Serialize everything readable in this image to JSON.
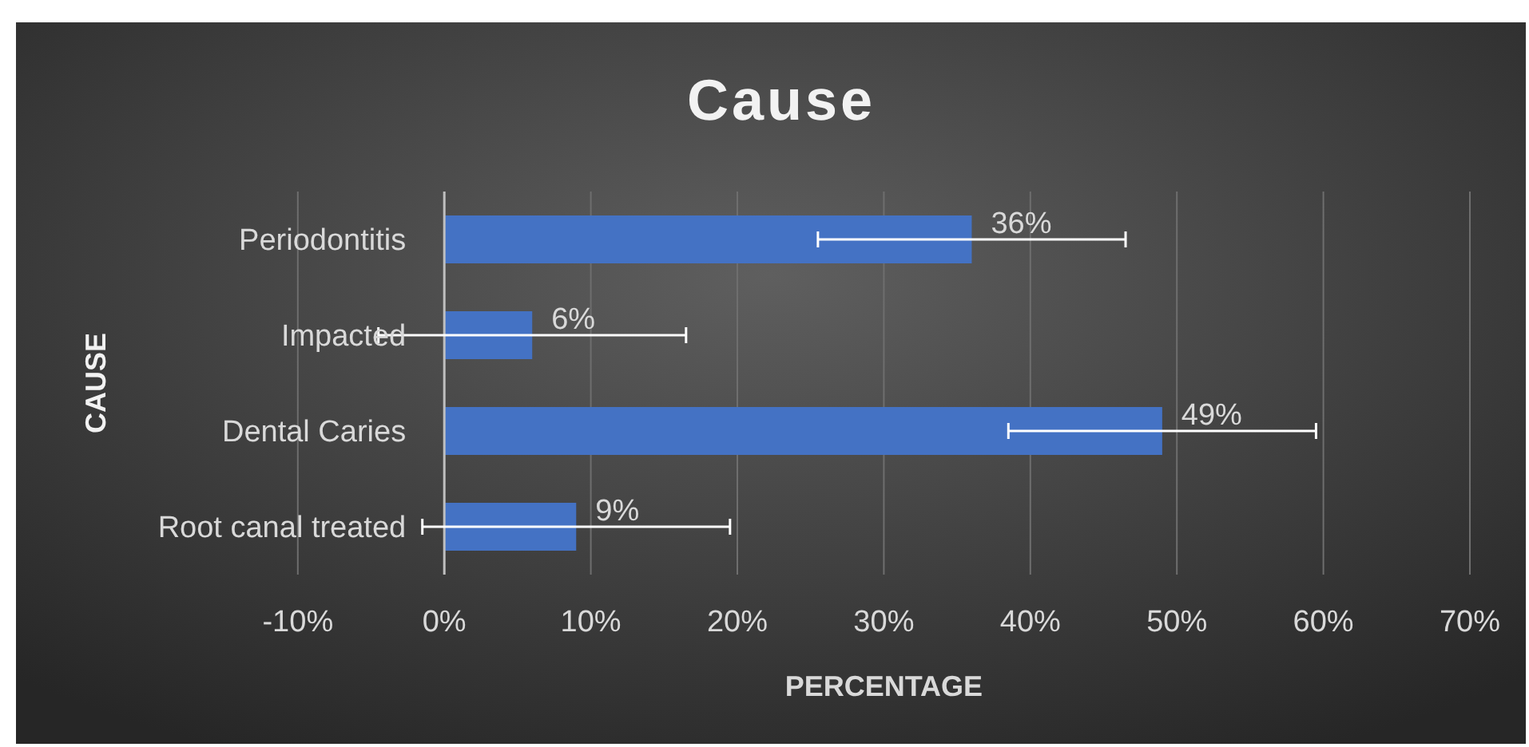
{
  "chart_data": {
    "type": "bar",
    "orientation": "horizontal",
    "title": "Cause",
    "xlabel": "PERCENTAGE",
    "ylabel": "CAUSE",
    "categories": [
      "Periodontitis",
      "Impacted",
      "Dental Caries",
      "Root canal treated"
    ],
    "values": [
      36,
      6,
      49,
      9
    ],
    "color": "#4472c4",
    "value_labels": [
      "36%",
      "6%",
      "49%",
      "9%"
    ],
    "errors": [
      10.5,
      10.5,
      10.5,
      10.5
    ],
    "xlim": [
      -10,
      70
    ],
    "xticks": [
      {
        "value": -10,
        "label": "-10%"
      },
      {
        "value": 0,
        "label": "0%"
      },
      {
        "value": 10,
        "label": "10%"
      },
      {
        "value": 20,
        "label": "20%"
      },
      {
        "value": 30,
        "label": "30%"
      },
      {
        "value": 40,
        "label": "40%"
      },
      {
        "value": 50,
        "label": "50%"
      },
      {
        "value": 60,
        "label": "60%"
      },
      {
        "value": 70,
        "label": "70%"
      }
    ],
    "grid": "x"
  }
}
